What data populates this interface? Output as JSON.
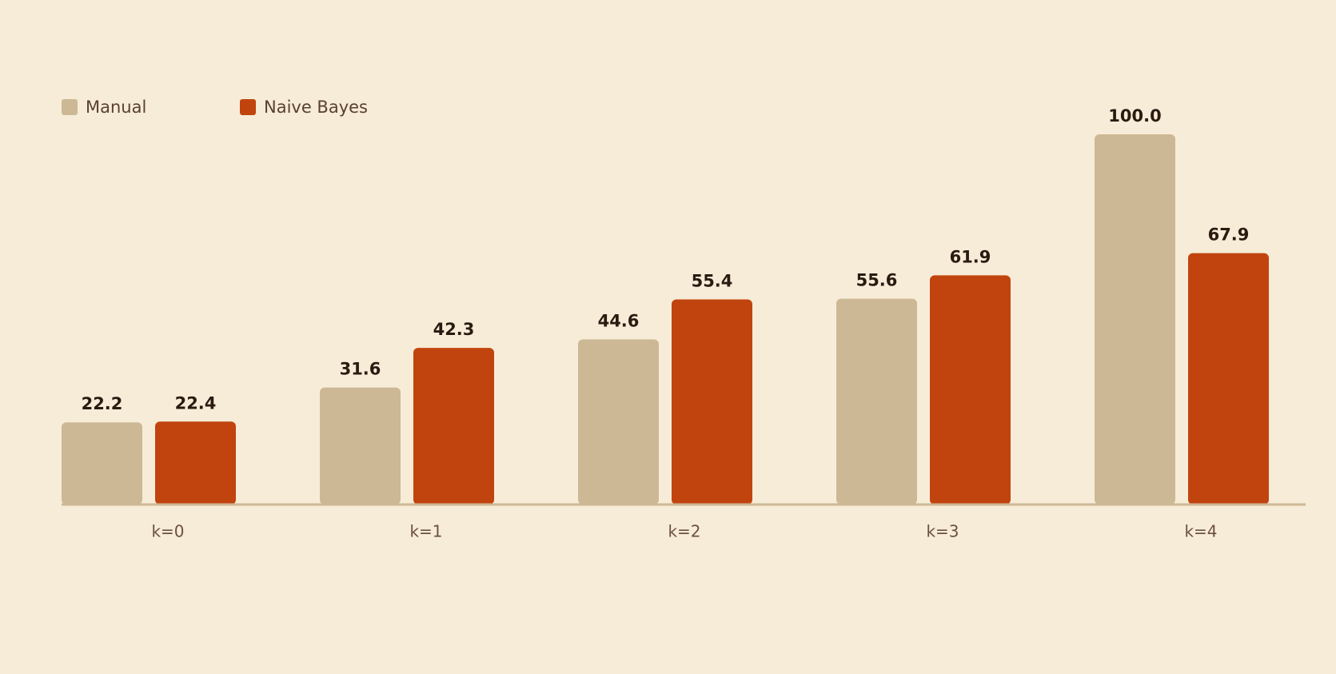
{
  "chart_data": {
    "type": "bar",
    "categories": [
      "k=0",
      "k=1",
      "k=2",
      "k=3",
      "k=4"
    ],
    "series": [
      {
        "name": "Manual",
        "color": "#cdb895",
        "values": [
          22.2,
          31.6,
          44.6,
          55.6,
          100
        ],
        "value_labels": [
          "22.2",
          "31.6",
          "44.6",
          "55.6",
          "100.0"
        ]
      },
      {
        "name": "Naive Bayes",
        "color": "#c1440e",
        "values": [
          22.4,
          42.3,
          55.4,
          61.9,
          67.9
        ],
        "value_labels": [
          "22.4",
          "42.3",
          "55.4",
          "61.9",
          "67.9"
        ]
      }
    ],
    "ylim": [
      0,
      100
    ],
    "legend": "top-left"
  }
}
